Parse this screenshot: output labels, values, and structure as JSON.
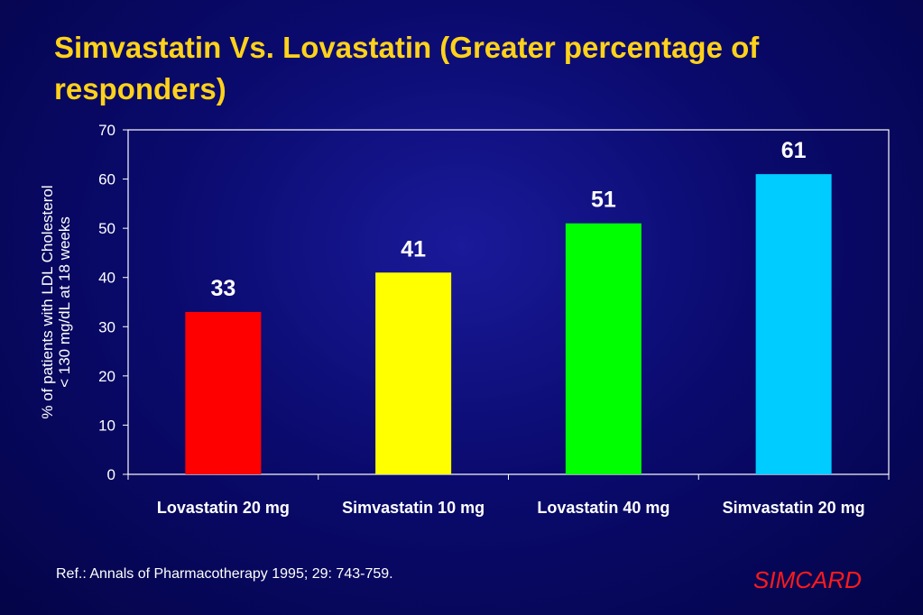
{
  "slide": {
    "title": "Simvastatin Vs. Lovastatin (Greater percentage of responders)",
    "reference": "Ref.: Annals of Pharmacotherapy 1995; 29: 743-759.",
    "brand": "SIMCARD"
  },
  "chart_data": {
    "type": "bar",
    "title": "",
    "xlabel": "",
    "ylabel_lines": [
      "% of patients with LDL Cholesterol",
      "< 130 mg/dL at 18 weeks"
    ],
    "categories": [
      "Lovastatin 20 mg",
      "Simvastatin 10 mg",
      "Lovastatin 40 mg",
      "Simvastatin 20 mg"
    ],
    "values": [
      33,
      41,
      51,
      61
    ],
    "bar_colors": [
      "#ff0000",
      "#ffff00",
      "#00ff00",
      "#00ccff"
    ],
    "ylim": [
      0,
      70
    ],
    "yticks": [
      0,
      10,
      20,
      30,
      40,
      50,
      60,
      70
    ],
    "grid": false,
    "legend": "none"
  }
}
